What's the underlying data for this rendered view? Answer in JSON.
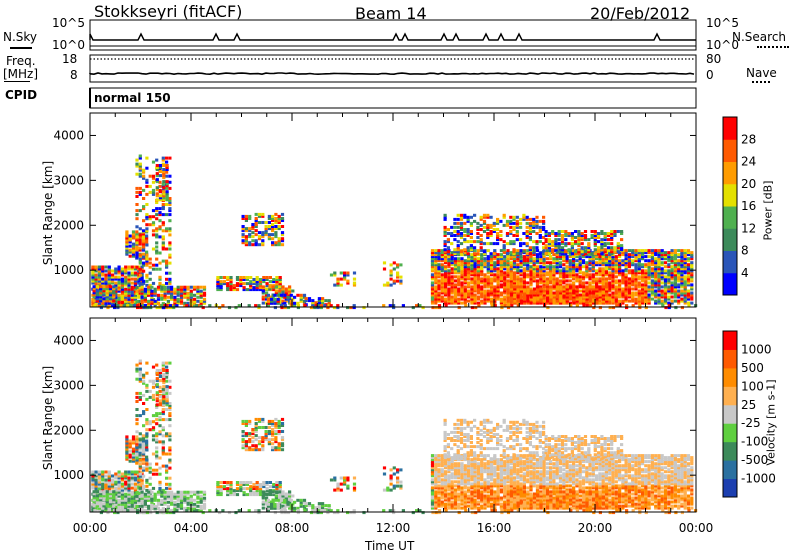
{
  "header": {
    "station": "Stokkseyri (fitACF)",
    "beam": "Beam 14",
    "date": "20/Feb/2012"
  },
  "status_panels": {
    "nsky_label": "N.Sky",
    "nsearch_label": "N.Search",
    "freq_label_1": "Freq.",
    "freq_label_2": "[MHz]",
    "nave_label": "Nave",
    "cpid_label": "CPID",
    "cpid_value": "normal 150",
    "noise_ticks": [
      "10^5",
      "10^0"
    ],
    "freq_ticks": [
      "18",
      "8"
    ],
    "nave_ticks": [
      "80",
      "0"
    ]
  },
  "chart_data": [
    {
      "type": "heatmap",
      "name": "power-panel",
      "ylabel": "Slant Range [km]",
      "xlabel": "",
      "ylim": [
        180,
        4500
      ],
      "yticks": [
        "4000",
        "3000",
        "2000",
        "1000"
      ],
      "colorbar": {
        "label": "Power [dB]",
        "ticks": [
          "28",
          "24",
          "20",
          "16",
          "12",
          "8",
          "4"
        ],
        "colors": [
          "#0000ff",
          "#2a55b8",
          "#3c8a5a",
          "#4fb04f",
          "#e4e000",
          "#ff9c00",
          "#ff5a00",
          "#ff0000"
        ]
      }
    },
    {
      "type": "heatmap",
      "name": "velocity-panel",
      "ylabel": "Slant Range [km]",
      "xlabel": "Time UT",
      "ylim": [
        180,
        4500
      ],
      "yticks": [
        "4000",
        "3000",
        "2000",
        "1000"
      ],
      "xticks": [
        "00:00",
        "04:00",
        "08:00",
        "12:00",
        "16:00",
        "20:00",
        "00:00"
      ],
      "colorbar": {
        "label": "Velocity [m s-1]",
        "ticks": [
          "1000",
          "500",
          "100",
          "25",
          "-25",
          "-100",
          "-500",
          "-1000"
        ],
        "colors": [
          "#1c3fb0",
          "#2a70a0",
          "#3c8a5a",
          "#5fcf3f",
          "#c8c8c8",
          "#ffb050",
          "#ff8c00",
          "#ff5a00",
          "#ff0000"
        ]
      }
    }
  ]
}
